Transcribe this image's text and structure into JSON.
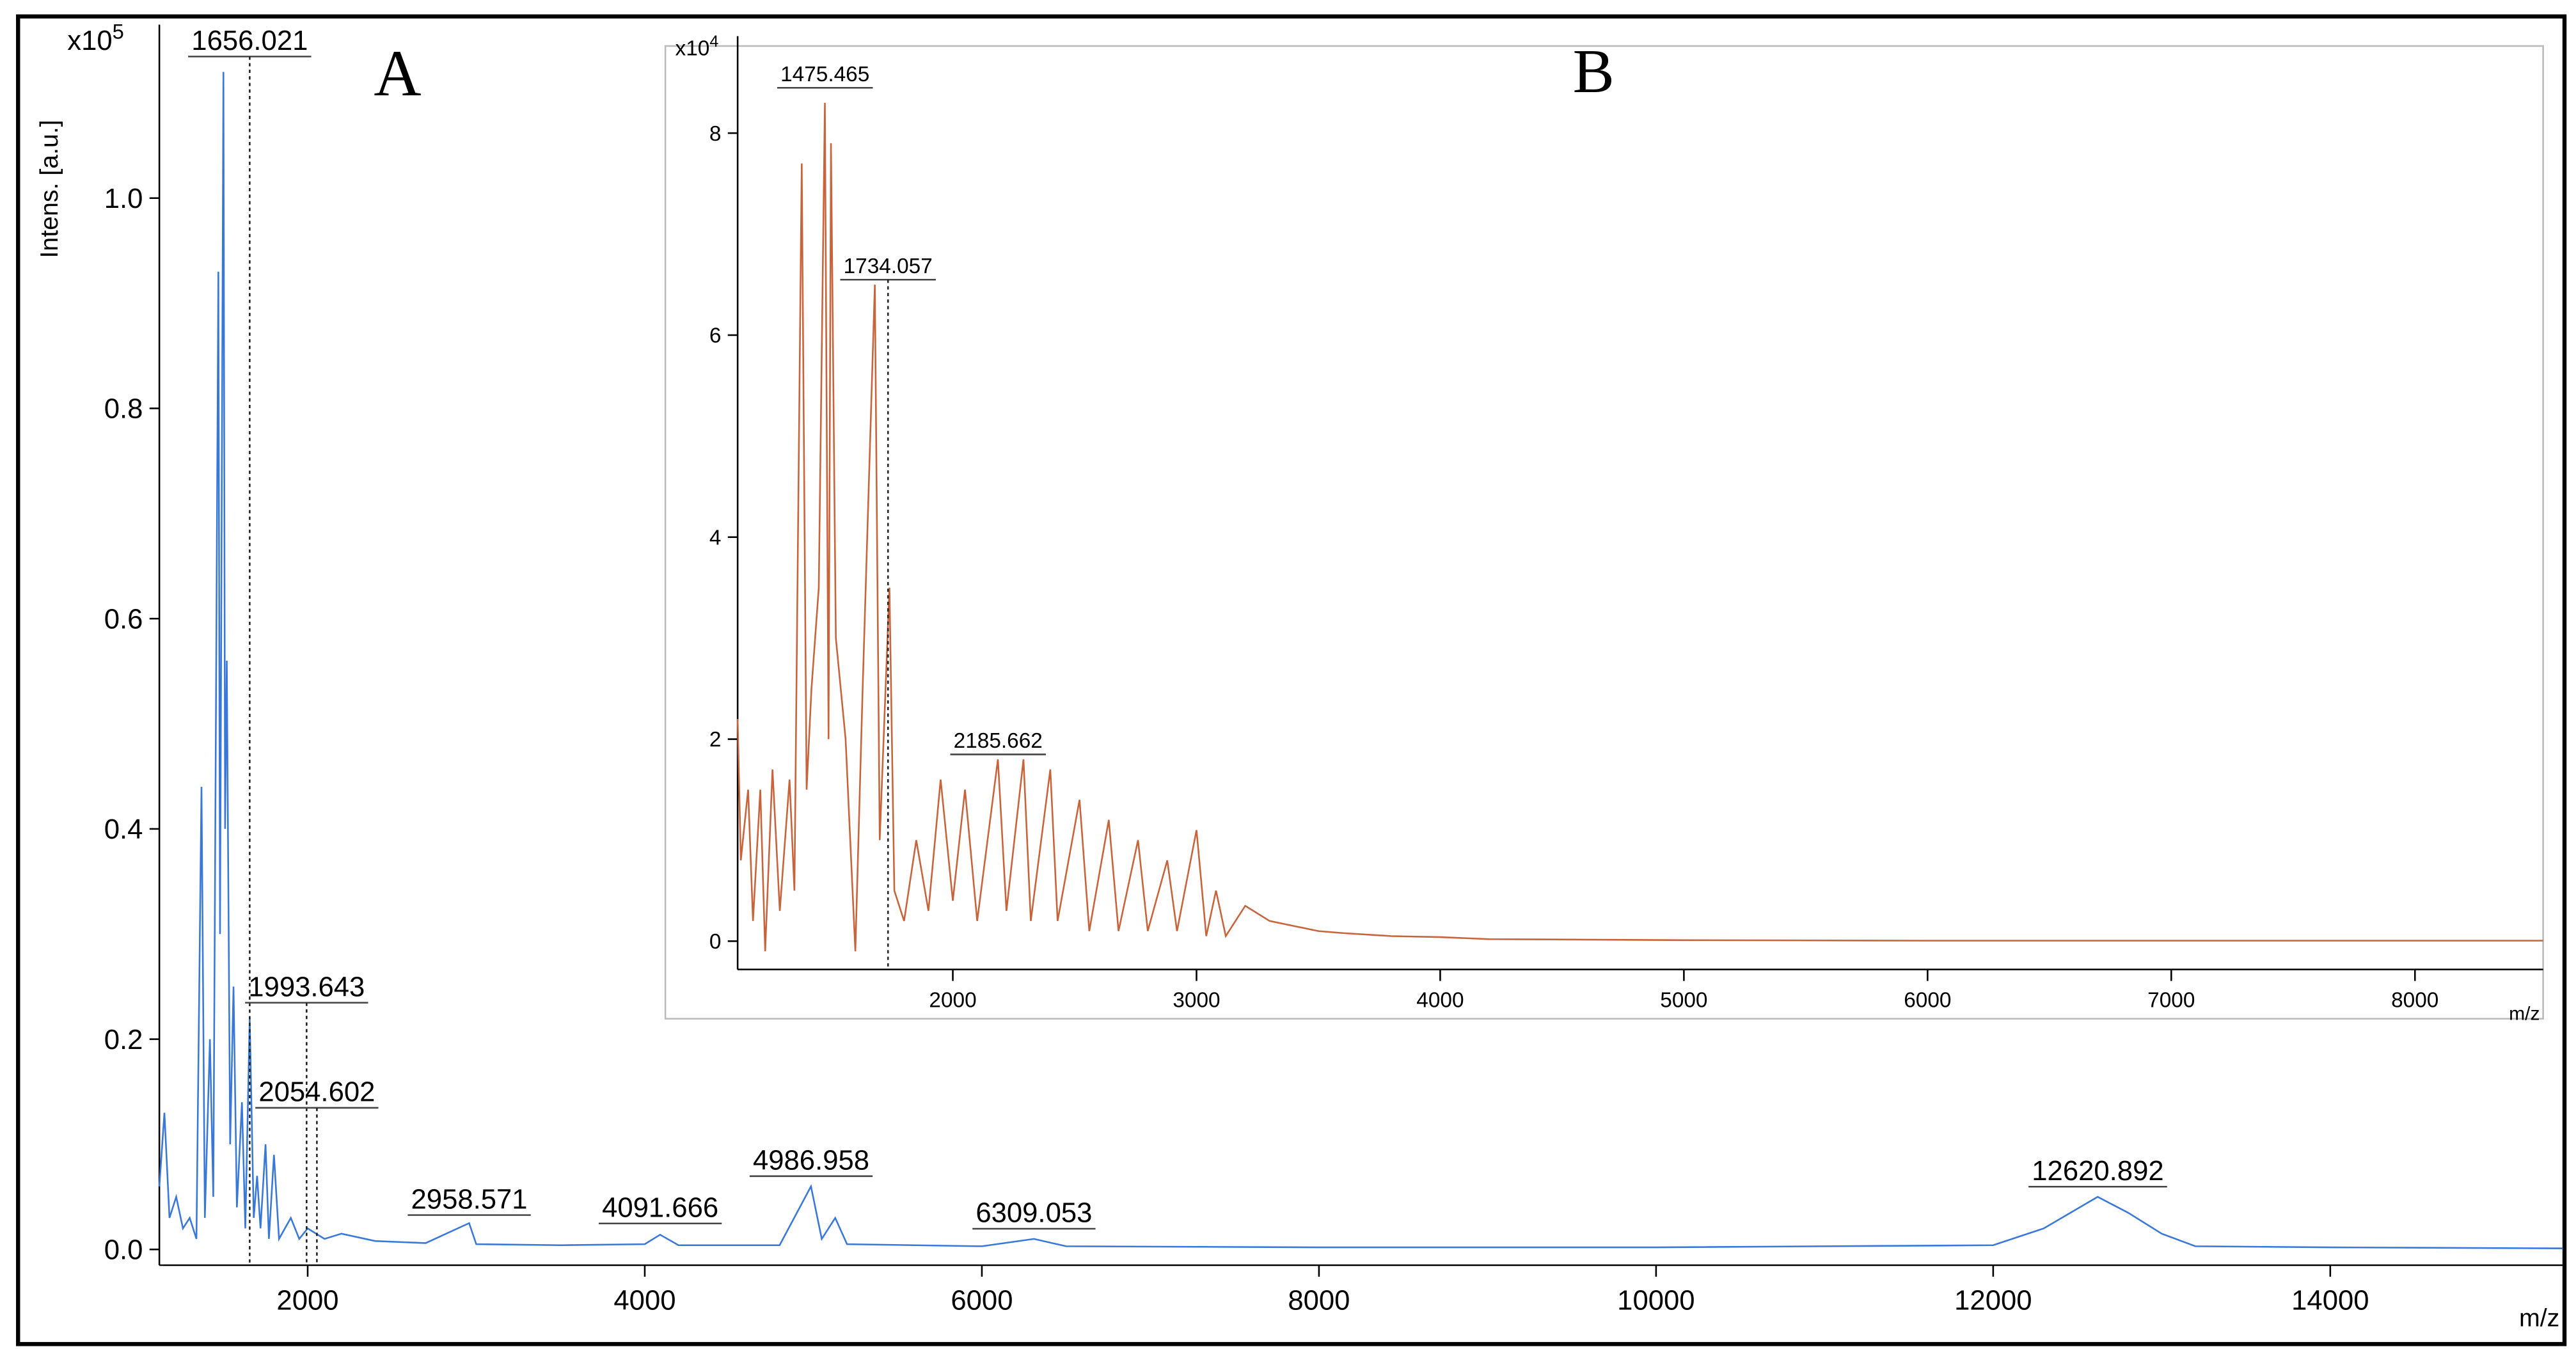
{
  "chart_data": [
    {
      "type": "line",
      "title": "A",
      "y_label": "Intens. [a.u.]",
      "x_label": "m/z",
      "y_multiplier": "x10",
      "y_multiplier_exp": "5",
      "color": "#3a78d8",
      "xlim": [
        1120,
        15380
      ],
      "ylim": [
        -0.015,
        1.165
      ],
      "xticks": [
        2000,
        4000,
        6000,
        8000,
        10000,
        12000,
        14000
      ],
      "yticks": [
        {
          "value": 0,
          "label": "0.0"
        },
        0.2,
        0.4,
        0.6,
        0.8,
        {
          "value": 1,
          "label": "1.0"
        }
      ],
      "x": [
        1120,
        1150,
        1180,
        1220,
        1260,
        1300,
        1340,
        1370,
        1390,
        1420,
        1440,
        1470,
        1480,
        1500,
        1510,
        1520,
        1540,
        1560,
        1580,
        1610,
        1630,
        1656,
        1680,
        1700,
        1720,
        1750,
        1770,
        1800,
        1830,
        1900,
        1950,
        2000,
        2100,
        2200,
        2400,
        2700,
        2958,
        3000,
        3500,
        4000,
        4091,
        4200,
        4800,
        4986,
        5050,
        5130,
        5200,
        6000,
        6309,
        6500,
        8000,
        10000,
        12000,
        12300,
        12620,
        12800,
        13000,
        13200,
        14000,
        15380
      ],
      "values": [
        0.06,
        0.13,
        0.03,
        0.05,
        0.02,
        0.03,
        0.01,
        0.44,
        0.03,
        0.2,
        0.05,
        0.93,
        0.3,
        1.12,
        0.4,
        0.56,
        0.1,
        0.25,
        0.04,
        0.14,
        0.02,
        0.22,
        0.03,
        0.07,
        0.02,
        0.1,
        0.01,
        0.09,
        0.01,
        0.03,
        0.01,
        0.02,
        0.01,
        0.015,
        0.008,
        0.006,
        0.025,
        0.005,
        0.004,
        0.005,
        0.014,
        0.004,
        0.004,
        0.06,
        0.01,
        0.03,
        0.005,
        0.003,
        0.01,
        0.003,
        0.002,
        0.002,
        0.004,
        0.02,
        0.05,
        0.035,
        0.015,
        0.003,
        0.002,
        0.001
      ],
      "peaks": [
        {
          "mz": 1656.021,
          "intensity": 1.13,
          "marker_line": true
        },
        {
          "mz": 1993.643,
          "intensity": 0.23,
          "marker_line": true
        },
        {
          "mz": 2054.602,
          "intensity": 0.13,
          "marker_line": true
        },
        {
          "mz": 2958.571,
          "intensity": 0.028,
          "marker_line": false
        },
        {
          "mz": 4091.666,
          "intensity": 0.02,
          "marker_line": false
        },
        {
          "mz": 4986.958,
          "intensity": 0.065,
          "marker_line": false
        },
        {
          "mz": 6309.053,
          "intensity": 0.015,
          "marker_line": false
        },
        {
          "mz": 12620.892,
          "intensity": 0.055,
          "marker_line": false
        }
      ]
    },
    {
      "type": "line",
      "title": "B",
      "x_label": "m/z",
      "y_multiplier": "x10",
      "y_multiplier_exp": "4",
      "color": "#c8643c",
      "xlim": [
        1117,
        8526
      ],
      "ylim": [
        -0.28,
        8.96
      ],
      "xticks": [
        2000,
        3000,
        4000,
        5000,
        6000,
        7000,
        8000
      ],
      "yticks": [
        0,
        2,
        4,
        6,
        8
      ],
      "x": [
        1117,
        1130,
        1160,
        1180,
        1210,
        1230,
        1260,
        1290,
        1330,
        1350,
        1380,
        1400,
        1420,
        1450,
        1475,
        1490,
        1500,
        1520,
        1560,
        1600,
        1630,
        1680,
        1700,
        1740,
        1760,
        1800,
        1850,
        1900,
        1950,
        2000,
        2050,
        2100,
        2185,
        2220,
        2290,
        2320,
        2400,
        2430,
        2520,
        2560,
        2640,
        2680,
        2760,
        2800,
        2880,
        2920,
        3000,
        3040,
        3080,
        3120,
        3200,
        3300,
        3400,
        3500,
        3600,
        3800,
        4000,
        4200,
        5000,
        6000,
        8526
      ],
      "values": [
        2.2,
        0.8,
        1.5,
        0.2,
        1.5,
        -0.1,
        1.7,
        0.3,
        1.6,
        0.5,
        7.7,
        1.5,
        2.5,
        3.5,
        8.3,
        2.0,
        7.9,
        3.0,
        2.0,
        -0.1,
        2.5,
        6.5,
        1.0,
        3.5,
        0.5,
        0.2,
        1.0,
        0.3,
        1.6,
        0.4,
        1.5,
        0.2,
        1.8,
        0.3,
        1.8,
        0.2,
        1.7,
        0.2,
        1.4,
        0.1,
        1.2,
        0.1,
        1.0,
        0.1,
        0.8,
        0.1,
        1.1,
        0.05,
        0.5,
        0.05,
        0.35,
        0.2,
        0.15,
        0.1,
        0.08,
        0.05,
        0.04,
        0.02,
        0.01,
        0.005,
        0.005
      ],
      "peaks": [
        {
          "mz": 1475.465,
          "intensity": 8.4,
          "marker_line": false
        },
        {
          "mz": 1734.057,
          "intensity": 6.5,
          "marker_line": true
        },
        {
          "mz": 2185.662,
          "intensity": 1.8,
          "marker_line": false
        }
      ]
    }
  ]
}
